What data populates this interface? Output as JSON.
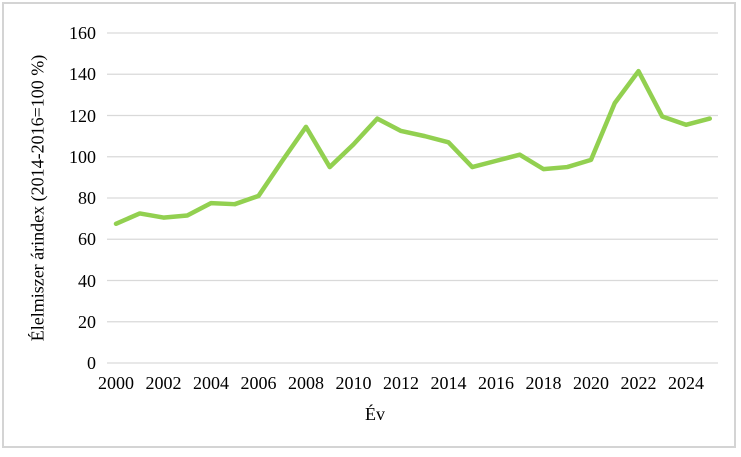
{
  "figure": {
    "background": "#ffffff",
    "border_color": "#d4d4d4"
  },
  "chart_data": {
    "type": "line",
    "title": "",
    "xlabel": "Év",
    "ylabel": "Élelmiszer árindex (2014-2016=100 %)",
    "x": [
      2000,
      2001,
      2002,
      2003,
      2004,
      2005,
      2006,
      2007,
      2008,
      2009,
      2010,
      2011,
      2012,
      2013,
      2014,
      2015,
      2016,
      2017,
      2018,
      2019,
      2020,
      2021,
      2022,
      2023,
      2024,
      2025
    ],
    "series": [
      {
        "name": "Élelmiszer árindex",
        "color": "#92D050",
        "values": [
          67.5,
          72.5,
          70.5,
          71.5,
          77.5,
          77,
          81,
          98,
          114.5,
          95,
          106,
          118.5,
          112.5,
          110,
          107,
          95,
          98,
          101,
          94,
          95,
          98.5,
          126,
          141.5,
          119.5,
          115.5,
          118.5
        ]
      }
    ],
    "ylim": [
      0,
      160
    ],
    "yticks": [
      0,
      20,
      40,
      60,
      80,
      100,
      120,
      140,
      160
    ],
    "xticks": [
      2000,
      2002,
      2004,
      2006,
      2008,
      2010,
      2012,
      2014,
      2016,
      2018,
      2020,
      2022,
      2024
    ],
    "grid": "horizontal-only",
    "gridline_color": "#d9d9d9",
    "legend_position": "none"
  }
}
